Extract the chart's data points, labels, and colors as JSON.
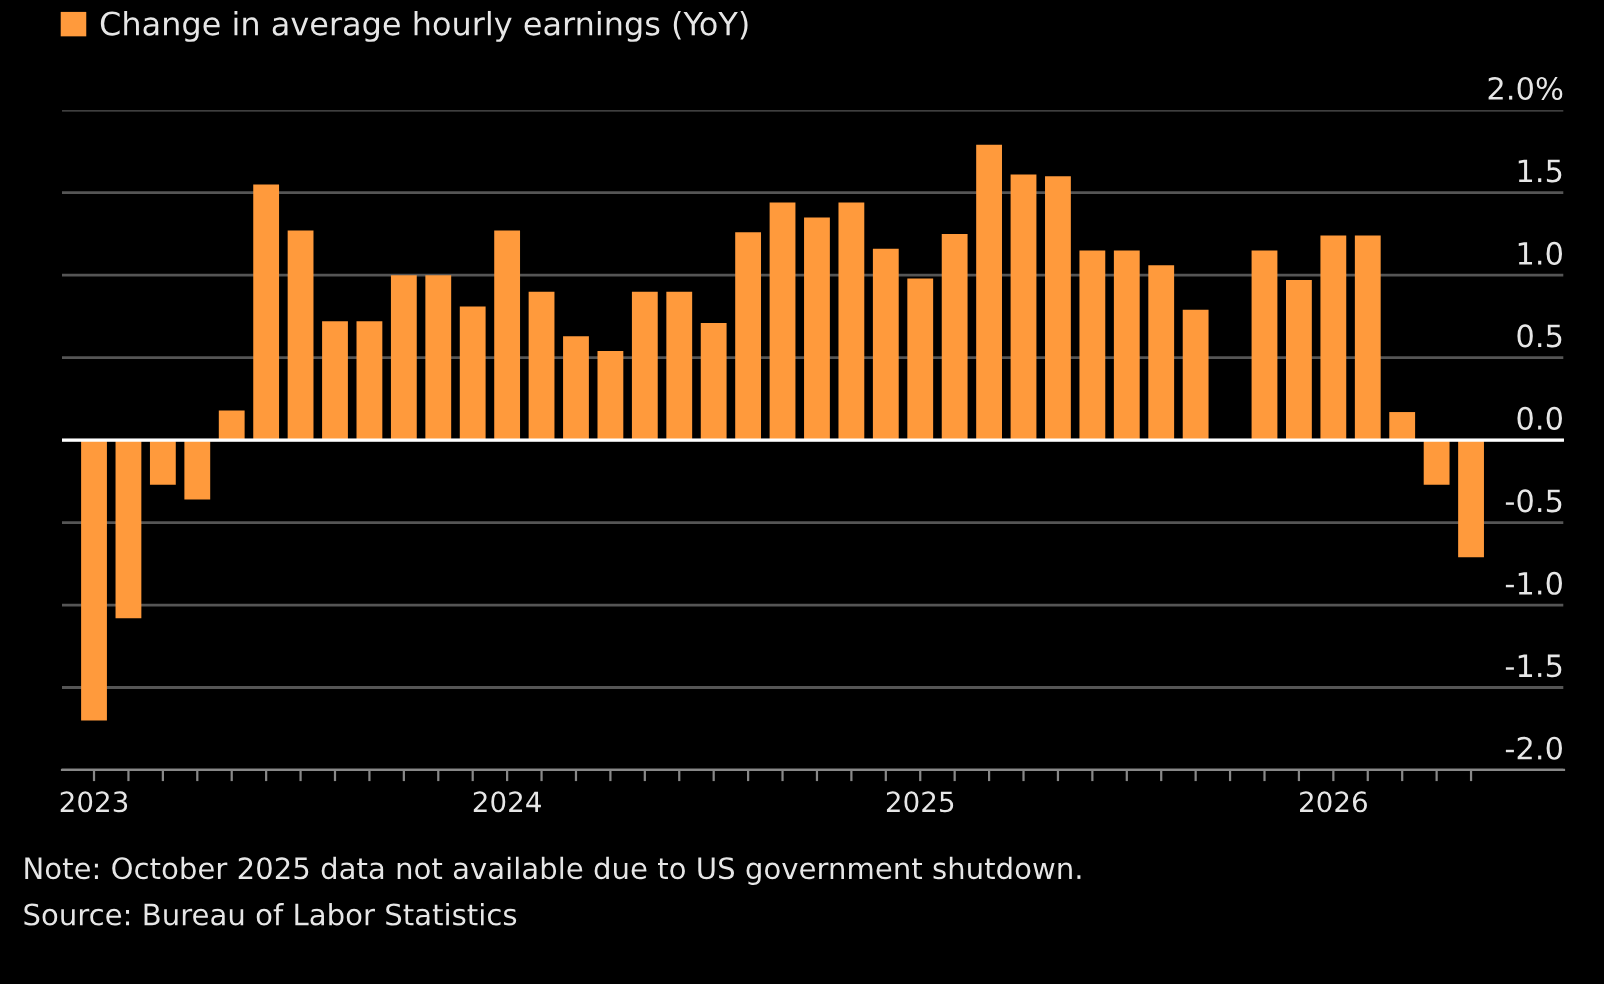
{
  "chart_data": {
    "type": "bar",
    "categories": [
      "2023",
      null,
      null,
      null,
      null,
      null,
      null,
      null,
      null,
      null,
      null,
      null,
      "2024",
      null,
      null,
      null,
      null,
      null,
      null,
      null,
      null,
      null,
      null,
      null,
      "2025",
      null,
      null,
      null,
      null,
      null,
      null,
      null,
      null,
      null,
      null,
      null,
      "2026",
      null,
      null,
      null,
      null
    ],
    "series": [
      {
        "name": "Change in average hourly earnings (YoY)",
        "color": "#ff9a3c",
        "values": [
          -1.7,
          -1.08,
          -0.27,
          -0.36,
          0.18,
          1.55,
          1.27,
          0.72,
          0.72,
          1.0,
          1.0,
          0.81,
          1.27,
          0.9,
          0.63,
          0.54,
          0.9,
          0.9,
          0.71,
          1.26,
          1.44,
          1.35,
          1.44,
          1.16,
          0.98,
          1.25,
          1.79,
          1.61,
          1.6,
          1.15,
          1.15,
          1.06,
          0.79,
          null,
          1.15,
          0.97,
          1.24,
          1.24,
          0.17,
          -0.27,
          -0.71
        ]
      }
    ],
    "ylim": [
      -2.0,
      2.0
    ],
    "yticks": [
      {
        "value": 2,
        "label": "2.0%"
      },
      1.5,
      {
        "value": 1,
        "label": "1.0"
      },
      0.5,
      {
        "value": 0,
        "label": "0.0"
      },
      -0.5,
      {
        "value": -1,
        "label": "-1.0"
      },
      -1.5,
      {
        "value": -2,
        "label": "-2.0"
      }
    ],
    "ref_lines": [
      {
        "axis": "y",
        "value": 0,
        "color": "#ffffff"
      }
    ],
    "grid": "y",
    "legend": "top left",
    "annotations": [
      "Note: October 2025 data not available due to US government shutdown.",
      "Source: Bureau of Labor Statistics"
    ]
  }
}
